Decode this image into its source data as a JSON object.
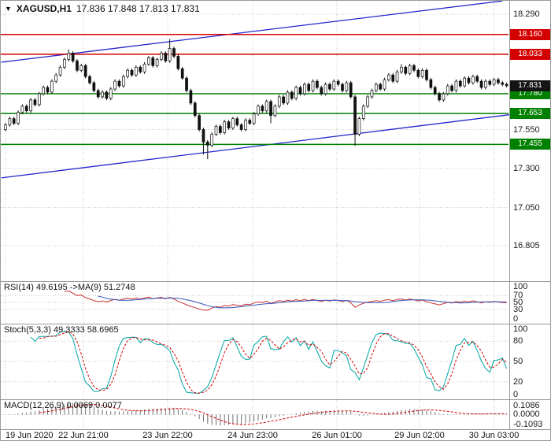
{
  "header": {
    "dropdown_icon": "▼",
    "symbol": "XAGUSD,H1",
    "ohlc": "17.836 17.848 17.813 17.831"
  },
  "colors": {
    "level_red": "#d40000",
    "level_green": "#008000",
    "trend_blue": "#2424cc",
    "grid": "#c9c9c9",
    "candle": "#111111",
    "candle_up_fill": "#ffffff",
    "current_badge_bg": "#141414",
    "rsi_line": "#cc3333",
    "rsi_ma": "#3355bb",
    "stoch_k": "#00a5a5",
    "stoch_d": "#d40000",
    "macd_bar": "#6e6e6e",
    "macd_signal": "#d40000"
  },
  "chart_data": {
    "type": "candlestick",
    "symbol": "XAGUSD",
    "timeframe": "H1",
    "title": "XAGUSD,H1",
    "ylim": [
      16.805,
      18.29
    ],
    "grid": true,
    "first_open": 17.55,
    "closes": [
      17.58,
      17.62,
      17.59,
      17.66,
      17.7,
      17.67,
      17.74,
      17.71,
      17.78,
      17.82,
      17.79,
      17.86,
      17.9,
      17.95,
      18.0,
      18.04,
      17.99,
      17.93,
      17.96,
      17.89,
      17.85,
      17.8,
      17.76,
      17.79,
      17.75,
      17.81,
      17.86,
      17.83,
      17.89,
      17.93,
      17.9,
      17.95,
      17.92,
      17.97,
      18.01,
      17.96,
      18.0,
      18.04,
      17.99,
      18.07,
      18.02,
      17.94,
      17.88,
      17.8,
      17.72,
      17.64,
      17.55,
      17.47,
      17.45,
      17.52,
      17.57,
      17.53,
      17.6,
      17.56,
      17.62,
      17.58,
      17.55,
      17.61,
      17.59,
      17.65,
      17.7,
      17.67,
      17.73,
      17.64,
      17.7,
      17.76,
      17.72,
      17.79,
      17.75,
      17.82,
      17.78,
      17.84,
      17.8,
      17.86,
      17.82,
      17.78,
      17.84,
      17.81,
      17.86,
      17.84,
      17.8,
      17.85,
      17.76,
      17.52,
      17.62,
      17.7,
      17.76,
      17.8,
      17.84,
      17.81,
      17.87,
      17.9,
      17.86,
      17.92,
      17.95,
      17.91,
      17.96,
      17.93,
      17.89,
      17.93,
      17.87,
      17.82,
      17.78,
      17.74,
      17.78,
      17.83,
      17.8,
      17.86,
      17.83,
      17.88,
      17.85,
      17.89,
      17.86,
      17.82,
      17.86,
      17.84,
      17.87,
      17.85,
      17.84,
      17.831
    ],
    "default_wick": 0.012,
    "wick_overrides": {
      "15": [
        0.025,
        0.012
      ],
      "39": [
        0.06,
        0.012
      ],
      "47": [
        0.012,
        0.08
      ],
      "48": [
        0.012,
        0.09
      ],
      "63": [
        0.012,
        0.05
      ],
      "83": [
        0.012,
        0.075
      ],
      "94": [
        0.02,
        0.012
      ]
    },
    "levels": [
      {
        "text": "18.160",
        "price": 18.16,
        "color_key": "level_red"
      },
      {
        "text": "18.033",
        "price": 18.033,
        "color_key": "level_red"
      },
      {
        "text": "17.780",
        "price": 17.78,
        "color_key": "level_green"
      },
      {
        "text": "17.653",
        "price": 17.653,
        "color_key": "level_green"
      },
      {
        "text": "17.455",
        "price": 17.455,
        "color_key": "level_green"
      }
    ],
    "trendlines": [
      {
        "i1": -1,
        "p1": 17.982,
        "i2": 118,
        "p2": 18.375
      },
      {
        "i1": -1,
        "p1": 17.24,
        "i2": 130,
        "p2": 17.68
      }
    ],
    "y_ticks": [
      {
        "text": "18.290",
        "price": 18.29
      },
      {
        "text": "17.550",
        "price": 17.55
      },
      {
        "text": "17.300",
        "price": 17.3
      },
      {
        "text": "17.050",
        "price": 17.05
      },
      {
        "text": "16.805",
        "price": 16.805
      }
    ],
    "x_ticks": [
      {
        "text": "19 Jun 2020",
        "i": 0
      },
      {
        "text": "22 Jun 21:00",
        "i": 18.5
      },
      {
        "text": "23 Jun 22:00",
        "i": 38.5
      },
      {
        "text": "24 Jun 23:00",
        "i": 58.7
      },
      {
        "text": "26 Jun 01:00",
        "i": 78.7
      },
      {
        "text": "29 Jun 02:00",
        "i": 98.3
      },
      {
        "text": "30 Jun 03:00",
        "i": 116
      }
    ],
    "current_price": {
      "text": "17.831",
      "price": 17.831
    }
  },
  "indicators": {
    "rsi": {
      "label": "RSI(14) 49.6195  ->MA(9) 51.2748",
      "period": 14,
      "ma_period": 9,
      "scale": [
        {
          "text": "100",
          "v": 100,
          "grid": false
        },
        {
          "text": "70",
          "v": 70,
          "grid": true
        },
        {
          "text": "50",
          "v": 50,
          "grid": true
        },
        {
          "text": "30",
          "v": 30,
          "grid": true
        },
        {
          "text": "0",
          "v": 0,
          "grid": false
        }
      ]
    },
    "stoch": {
      "label": "Stoch(5,3,3) 49.3333 58.6965",
      "k_period": 5,
      "slowing": 3,
      "d_period": 3,
      "scale": [
        {
          "text": "100",
          "v": 100,
          "grid": false
        },
        {
          "text": "80",
          "v": 80,
          "grid": true
        },
        {
          "text": "50",
          "v": 50,
          "grid": true
        },
        {
          "text": "20",
          "v": 20,
          "grid": true
        },
        {
          "text": "0",
          "v": 0,
          "grid": false
        }
      ]
    },
    "macd": {
      "label": "MACD(12,26,9) 0.0069 0.0077",
      "fast": 12,
      "slow": 26,
      "signal": 9,
      "scale_labels": [
        "0.1086",
        "0.0000",
        "-0.1093"
      ]
    }
  }
}
